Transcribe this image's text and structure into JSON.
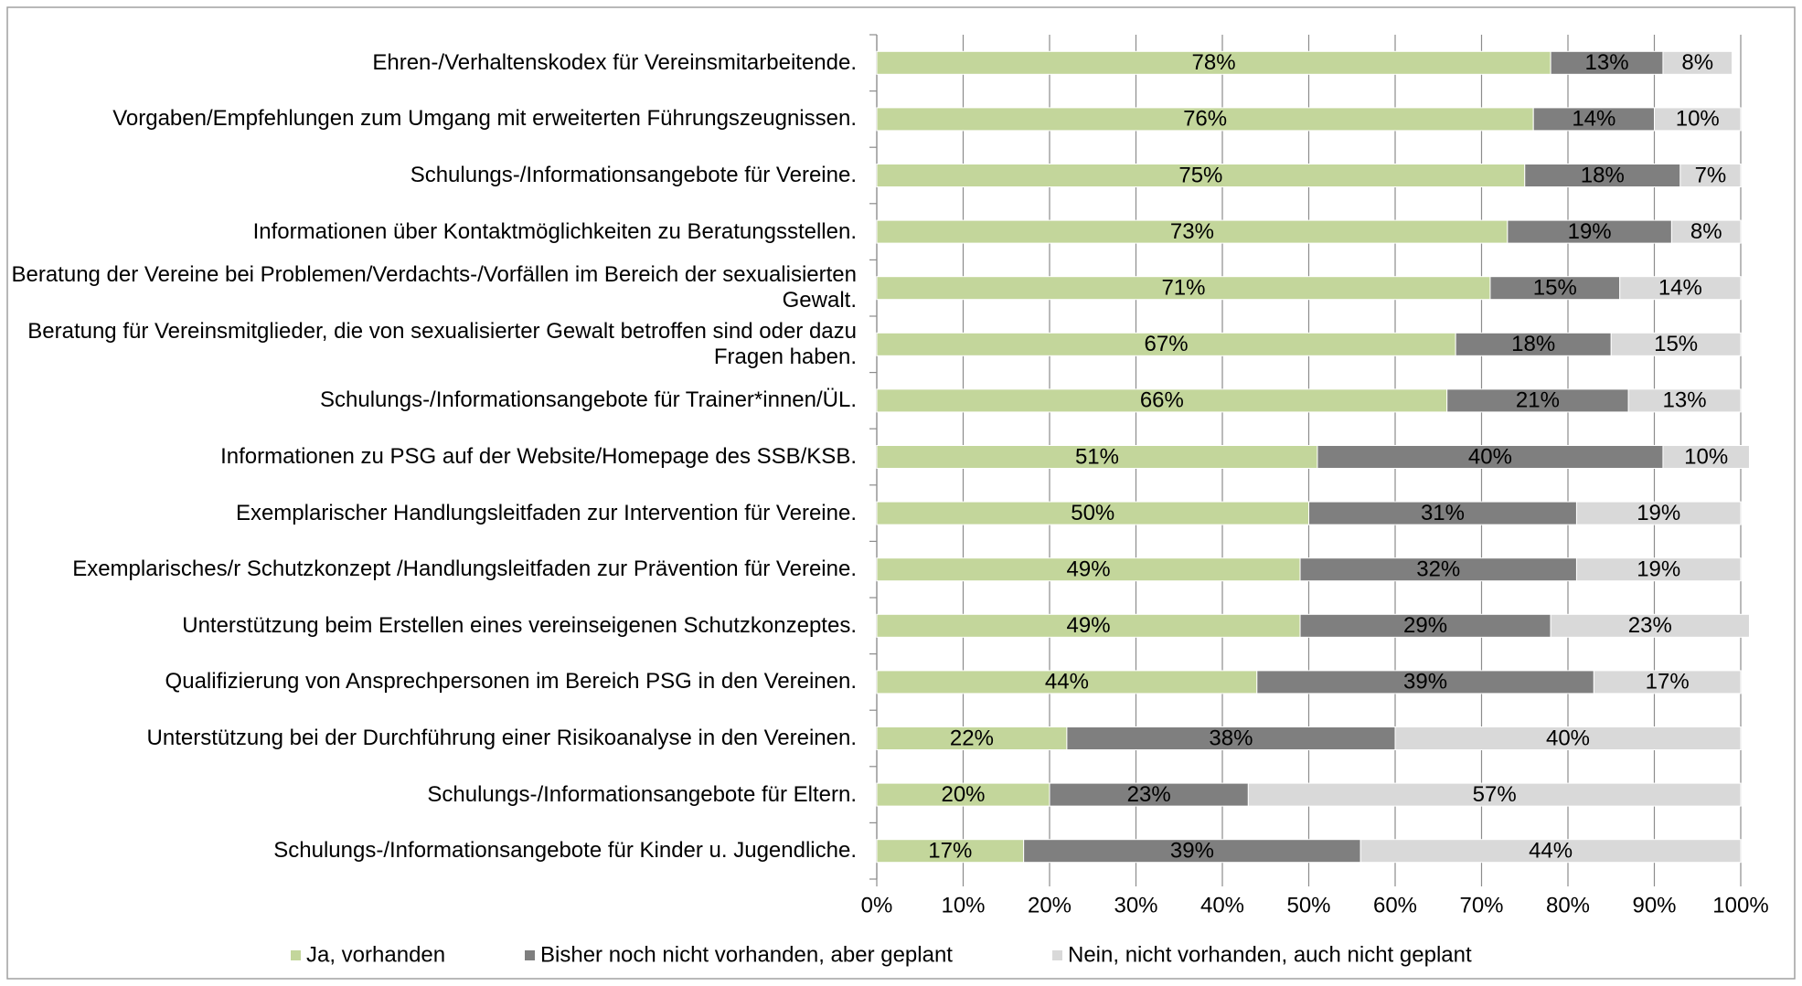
{
  "chart_data": {
    "type": "stacked-barh",
    "categories": [
      "Ehren-/Verhaltenskodex für Vereinsmitarbeitende.",
      "Vorgaben/Empfehlungen zum Umgang mit erweiterten Führungszeugnissen.",
      "Schulungs-/Informationsangebote für Vereine.",
      "Informationen über Kontaktmöglichkeiten zu Beratungsstellen.",
      "Beratung der Vereine bei Problemen/Verdachts-/Vorfällen im Bereich der sexualisierten Gewalt.",
      "Beratung für Vereinsmitglieder, die von sexualisierter Gewalt betroffen sind oder dazu Fragen haben.",
      "Schulungs-/Informationsangebote für Trainer*innen/ÜL.",
      "Informationen zu PSG auf der Website/Homepage des SSB/KSB.",
      "Exemplarischer Handlungsleitfaden zur Intervention für Vereine.",
      "Exemplarisches/r Schutzkonzept /Handlungsleitfaden zur Prävention für Vereine.",
      "Unterstützung beim Erstellen eines vereinseigenen Schutzkonzeptes.",
      "Qualifizierung von Ansprechpersonen im Bereich PSG in den Vereinen.",
      "Unterstützung bei der Durchführung einer Risikoanalyse in den Vereinen.",
      "Schulungs-/Informationsangebote für Eltern.",
      "Schulungs-/Informationsangebote für Kinder u. Jugendliche."
    ],
    "series": [
      {
        "name": "Ja, vorhanden",
        "color": "#c3d69b",
        "values": [
          78,
          76,
          75,
          73,
          71,
          67,
          66,
          51,
          50,
          49,
          49,
          44,
          22,
          20,
          17
        ],
        "value_labels": [
          "78%",
          "76%",
          "75%",
          "73%",
          "71%",
          "67%",
          "66%",
          "51%",
          "50%",
          "49%",
          "49%",
          "44%",
          "22%",
          "20%",
          "17%"
        ]
      },
      {
        "name": "Bisher noch nicht vorhanden, aber geplant",
        "color": "#7f7f7f",
        "values": [
          13,
          14,
          18,
          19,
          15,
          18,
          21,
          40,
          31,
          32,
          29,
          39,
          38,
          23,
          39
        ],
        "value_labels": [
          "13%",
          "14%",
          "18%",
          "19%",
          "15%",
          "18%",
          "21%",
          "40%",
          "31%",
          "32%",
          "29%",
          "39%",
          "38%",
          "23%",
          "39%"
        ]
      },
      {
        "name": "Nein, nicht vorhanden, auch nicht geplant",
        "color": "#d9d9d9",
        "values": [
          8,
          10,
          7,
          8,
          14,
          15,
          13,
          10,
          19,
          19,
          23,
          17,
          40,
          57,
          44
        ],
        "value_labels": [
          "8%",
          "10%",
          "7%",
          "8%",
          "14%",
          "15%",
          "13%",
          "10%",
          "19%",
          "19%",
          "23%",
          "17%",
          "40%",
          "57%",
          "44%"
        ]
      }
    ],
    "xlim": [
      0,
      100
    ],
    "xticks": [
      {
        "value": 0,
        "label": "0%"
      },
      {
        "value": 10,
        "label": "10%"
      },
      {
        "value": 20,
        "label": "20%"
      },
      {
        "value": 30,
        "label": "30%"
      },
      {
        "value": 40,
        "label": "40%"
      },
      {
        "value": 50,
        "label": "50%"
      },
      {
        "value": 60,
        "label": "60%"
      },
      {
        "value": 70,
        "label": "70%"
      },
      {
        "value": 80,
        "label": "80%"
      },
      {
        "value": 90,
        "label": "90%"
      },
      {
        "value": 100,
        "label": "100%"
      }
    ],
    "grid": true,
    "legend": "bottom"
  }
}
